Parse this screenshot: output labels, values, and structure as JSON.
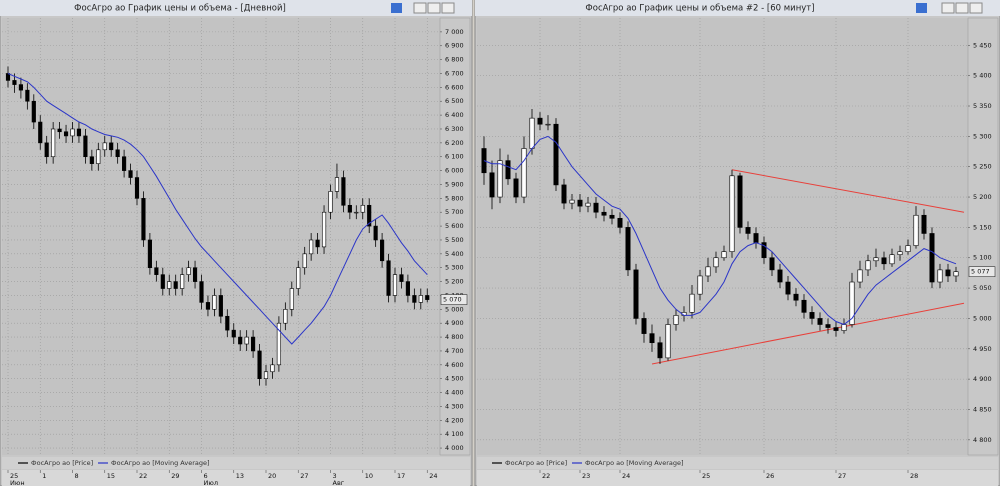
{
  "chart_data": [
    {
      "type": "candlestick",
      "title": "ФосАгро ао График цены и объема - [Дневной]",
      "categories": [
        "25",
        null,
        null,
        null,
        null,
        "1",
        null,
        null,
        null,
        null,
        "8",
        null,
        null,
        null,
        null,
        "15",
        null,
        null,
        null,
        null,
        "22",
        null,
        null,
        null,
        null,
        "29",
        null,
        null,
        null,
        null,
        "6",
        null,
        null,
        null,
        null,
        "13",
        null,
        null,
        null,
        null,
        "20",
        null,
        null,
        null,
        null,
        "27",
        null,
        null,
        null,
        null,
        "3",
        null,
        null,
        null,
        null,
        "10",
        null,
        null,
        null,
        null,
        "17",
        null,
        null,
        null,
        null,
        "24"
      ],
      "months": [
        "Июн",
        null,
        null,
        null,
        null,
        null,
        null,
        null,
        null,
        null,
        null,
        null,
        null,
        null,
        null,
        null,
        null,
        null,
        null,
        null,
        null,
        null,
        null,
        null,
        null,
        null,
        null,
        null,
        null,
        null,
        "Июл",
        null,
        null,
        null,
        null,
        null,
        null,
        null,
        null,
        null,
        null,
        null,
        null,
        null,
        null,
        null,
        null,
        null,
        null,
        null,
        "Авг",
        null,
        null,
        null,
        null,
        null,
        null,
        null,
        null,
        null,
        null,
        null,
        null,
        null,
        null,
        null
      ],
      "series": [
        {
          "name": "ФосАгро ао [Price]",
          "color": "#000000",
          "open": [
            6700,
            6650,
            6620,
            6580,
            6500,
            6350,
            6200,
            6100,
            6300,
            6280,
            6250,
            6300,
            6250,
            6100,
            6050,
            6150,
            6200,
            6150,
            6100,
            6000,
            5950,
            5800,
            5500,
            5300,
            5250,
            5150,
            5200,
            5150,
            5250,
            5300,
            5200,
            5050,
            5000,
            5100,
            4950,
            4850,
            4800,
            4750,
            4800,
            4700,
            4500,
            4550,
            4600,
            4900,
            5000,
            5150,
            5300,
            5400,
            5500,
            5450,
            5700,
            5850,
            5950,
            5750,
            5700,
            5700,
            5750,
            5600,
            5500,
            5350,
            5100,
            5250,
            5200,
            5100,
            5050,
            5100
          ],
          "high": [
            6750,
            6700,
            6670,
            6630,
            6550,
            6400,
            6250,
            6350,
            6350,
            6330,
            6350,
            6350,
            6300,
            6150,
            6200,
            6250,
            6250,
            6200,
            6150,
            6050,
            6000,
            5850,
            5550,
            5350,
            5300,
            5250,
            5250,
            5300,
            5350,
            5350,
            5250,
            5100,
            5150,
            5150,
            5000,
            4900,
            4850,
            4850,
            4850,
            4750,
            4600,
            4650,
            4950,
            5050,
            5200,
            5350,
            5450,
            5550,
            5550,
            5750,
            5900,
            6050,
            6000,
            5800,
            5750,
            5800,
            5800,
            5650,
            5550,
            5400,
            5300,
            5300,
            5250,
            5150,
            5150,
            5150
          ],
          "low": [
            6600,
            6560,
            6520,
            6440,
            6300,
            6150,
            6050,
            6050,
            6230,
            6200,
            6200,
            6200,
            6050,
            6000,
            6000,
            6100,
            6100,
            6050,
            5950,
            5900,
            5750,
            5450,
            5250,
            5200,
            5100,
            5100,
            5100,
            5100,
            5200,
            5150,
            5000,
            4950,
            4950,
            4900,
            4800,
            4750,
            4700,
            4700,
            4650,
            4450,
            4450,
            4500,
            4550,
            4850,
            4950,
            5100,
            5250,
            5350,
            5400,
            5400,
            5650,
            5800,
            5700,
            5650,
            5650,
            5650,
            5550,
            5450,
            5300,
            5050,
            5050,
            5150,
            5050,
            5000,
            5000,
            5050
          ],
          "close": [
            6650,
            6620,
            6580,
            6500,
            6350,
            6200,
            6100,
            6300,
            6280,
            6250,
            6300,
            6250,
            6100,
            6050,
            6150,
            6200,
            6150,
            6100,
            6000,
            5950,
            5800,
            5500,
            5300,
            5250,
            5150,
            5200,
            5150,
            5250,
            5300,
            5200,
            5050,
            5000,
            5100,
            4950,
            4850,
            4800,
            4750,
            4800,
            4700,
            4500,
            4550,
            4600,
            4900,
            5000,
            5150,
            5300,
            5400,
            5500,
            5450,
            5700,
            5850,
            5950,
            5750,
            5700,
            5700,
            5750,
            5600,
            5500,
            5350,
            5100,
            5250,
            5200,
            5100,
            5050,
            5100,
            5070
          ]
        },
        {
          "name": "ФосАгро ао [Moving Average]",
          "color": "#2b35c8",
          "values": [
            6700,
            6680,
            6660,
            6640,
            6600,
            6550,
            6500,
            6470,
            6440,
            6410,
            6380,
            6350,
            6330,
            6300,
            6280,
            6260,
            6250,
            6240,
            6220,
            6190,
            6150,
            6100,
            6030,
            5960,
            5880,
            5800,
            5720,
            5650,
            5580,
            5510,
            5450,
            5400,
            5350,
            5300,
            5250,
            5200,
            5150,
            5100,
            5050,
            5000,
            4950,
            4900,
            4850,
            4800,
            4750,
            4800,
            4850,
            4900,
            4960,
            5020,
            5100,
            5200,
            5300,
            5400,
            5500,
            5580,
            5620,
            5650,
            5680,
            5620,
            5550,
            5480,
            5420,
            5350,
            5300,
            5250
          ]
        }
      ],
      "ylim": [
        3950,
        7100
      ],
      "yticks": [
        {
          "value": 7000,
          "label": "7 000"
        },
        {
          "value": 6900,
          "label": "6 900"
        },
        {
          "value": 6800,
          "label": "6 800"
        },
        {
          "value": 6700,
          "label": "6 700"
        },
        {
          "value": 6600,
          "label": "6 600"
        },
        {
          "value": 6500,
          "label": "6 500"
        },
        {
          "value": 6400,
          "label": "6 400"
        },
        {
          "value": 6300,
          "label": "6 300"
        },
        {
          "value": 6200,
          "label": "6 200"
        },
        {
          "value": 6100,
          "label": "6 100"
        },
        {
          "value": 6000,
          "label": "6 000"
        },
        {
          "value": 5900,
          "label": "5 900"
        },
        {
          "value": 5800,
          "label": "5 800"
        },
        {
          "value": 5700,
          "label": "5 700"
        },
        {
          "value": 5600,
          "label": "5 600"
        },
        {
          "value": 5500,
          "label": "5 500"
        },
        {
          "value": 5400,
          "label": "5 400"
        },
        {
          "value": 5300,
          "label": "5 300"
        },
        {
          "value": 5200,
          "label": "5 200"
        },
        {
          "value": 5100,
          "label": "5 100"
        },
        {
          "value": 5000,
          "label": "5 000"
        },
        {
          "value": 4900,
          "label": "4 900"
        },
        {
          "value": 4800,
          "label": "4 800"
        },
        {
          "value": 4700,
          "label": "4 700"
        },
        {
          "value": 4600,
          "label": "4 600"
        },
        {
          "value": 4500,
          "label": "4 500"
        },
        {
          "value": 4400,
          "label": "4 400"
        },
        {
          "value": 4300,
          "label": "4 300"
        },
        {
          "value": 4200,
          "label": "4 200"
        },
        {
          "value": 4100,
          "label": "4 100"
        },
        {
          "value": 4000,
          "label": "4 000"
        }
      ],
      "last_price": {
        "value": 5070,
        "label": "5 070"
      },
      "grid": true
    },
    {
      "type": "candlestick",
      "title": "ФосАгро ао График цены и объема #2 - [60 минут]",
      "categories": [
        null,
        null,
        null,
        null,
        null,
        null,
        null,
        "22",
        null,
        null,
        null,
        null,
        "23",
        null,
        null,
        null,
        null,
        "24",
        null,
        null,
        null,
        null,
        null,
        null,
        null,
        null,
        null,
        "25",
        null,
        null,
        null,
        null,
        null,
        null,
        null,
        "26",
        null,
        null,
        null,
        null,
        null,
        null,
        null,
        null,
        "27",
        null,
        null,
        null,
        null,
        null,
        null,
        null,
        null,
        "28",
        null,
        null,
        null,
        null,
        null,
        null
      ],
      "series": [
        {
          "name": "ФосАгро ао [Price]",
          "color": "#000000",
          "open": [
            5280,
            5240,
            5200,
            5260,
            5230,
            5200,
            5280,
            5330,
            5320,
            5320,
            5220,
            5190,
            5195,
            5185,
            5190,
            5175,
            5170,
            5165,
            5150,
            5080,
            5000,
            4975,
            4960,
            4935,
            4990,
            5005,
            5010,
            5040,
            5070,
            5085,
            5100,
            5110,
            5235,
            5150,
            5140,
            5125,
            5100,
            5080,
            5060,
            5040,
            5030,
            5010,
            5000,
            4990,
            4985,
            4980,
            4990,
            5060,
            5080,
            5095,
            5100,
            5090,
            5105,
            5110,
            5120,
            5170,
            5140,
            5060,
            5080,
            5070
          ],
          "high": [
            5300,
            5260,
            5280,
            5270,
            5240,
            5300,
            5345,
            5340,
            5335,
            5330,
            5230,
            5205,
            5205,
            5200,
            5200,
            5185,
            5180,
            5175,
            5160,
            5090,
            5010,
            4990,
            4970,
            5000,
            5015,
            5020,
            5055,
            5080,
            5100,
            5110,
            5120,
            5245,
            5240,
            5160,
            5150,
            5135,
            5110,
            5090,
            5070,
            5050,
            5040,
            5020,
            5010,
            5000,
            4995,
            5000,
            5075,
            5095,
            5105,
            5115,
            5110,
            5115,
            5120,
            5130,
            5185,
            5180,
            5150,
            5090,
            5090,
            5085
          ],
          "low": [
            5220,
            5180,
            5190,
            5220,
            5190,
            5190,
            5270,
            5310,
            5310,
            5210,
            5180,
            5180,
            5175,
            5175,
            5165,
            5160,
            5155,
            5140,
            5070,
            4990,
            4960,
            4945,
            4925,
            4930,
            4980,
            4995,
            5000,
            5030,
            5060,
            5075,
            5095,
            5100,
            5140,
            5130,
            5115,
            5090,
            5070,
            5050,
            5030,
            5020,
            5000,
            4990,
            4980,
            4975,
            4970,
            4975,
            4985,
            5050,
            5070,
            5085,
            5080,
            5085,
            5095,
            5105,
            5115,
            5130,
            5050,
            5050,
            5060,
            5060
          ],
          "close": [
            5240,
            5200,
            5260,
            5230,
            5200,
            5280,
            5330,
            5320,
            5320,
            5220,
            5190,
            5195,
            5185,
            5190,
            5175,
            5170,
            5165,
            5150,
            5080,
            5000,
            4975,
            4960,
            4935,
            4990,
            5005,
            5010,
            5040,
            5070,
            5085,
            5100,
            5110,
            5235,
            5150,
            5140,
            5125,
            5100,
            5080,
            5060,
            5040,
            5030,
            5010,
            5000,
            4990,
            4985,
            4980,
            4990,
            5060,
            5080,
            5095,
            5100,
            5090,
            5105,
            5110,
            5120,
            5170,
            5140,
            5060,
            5080,
            5070,
            5077
          ]
        },
        {
          "name": "ФосАгро ао [Moving Average]",
          "color": "#2b35c8",
          "values": [
            5260,
            5255,
            5255,
            5250,
            5245,
            5260,
            5280,
            5295,
            5300,
            5290,
            5270,
            5250,
            5235,
            5220,
            5205,
            5195,
            5185,
            5180,
            5165,
            5140,
            5110,
            5080,
            5050,
            5030,
            5015,
            5005,
            5005,
            5010,
            5025,
            5040,
            5060,
            5090,
            5110,
            5120,
            5125,
            5120,
            5110,
            5095,
            5080,
            5065,
            5050,
            5035,
            5020,
            5005,
            4995,
            4990,
            5000,
            5020,
            5040,
            5055,
            5065,
            5075,
            5085,
            5095,
            5105,
            5115,
            5110,
            5100,
            5095,
            5090
          ]
        }
      ],
      "ylim": [
        4775,
        5495
      ],
      "yticks": [
        {
          "value": 5450,
          "label": "5 450"
        },
        {
          "value": 5400,
          "label": "5 400"
        },
        {
          "value": 5350,
          "label": "5 350"
        },
        {
          "value": 5300,
          "label": "5 300"
        },
        {
          "value": 5250,
          "label": "5 250"
        },
        {
          "value": 5200,
          "label": "5 200"
        },
        {
          "value": 5150,
          "label": "5 150"
        },
        {
          "value": 5100,
          "label": "5 100"
        },
        {
          "value": 5050,
          "label": "5 050"
        },
        {
          "value": 5000,
          "label": "5 000"
        },
        {
          "value": 4950,
          "label": "4 950"
        },
        {
          "value": 4900,
          "label": "4 900"
        },
        {
          "value": 4850,
          "label": "4 850"
        },
        {
          "value": 4800,
          "label": "4 800"
        }
      ],
      "last_price": {
        "value": 5077,
        "label": "5 077"
      },
      "trendlines": [
        {
          "color": "#e8403a",
          "x": [
            31,
            60
          ],
          "y": [
            5245,
            5175
          ]
        },
        {
          "color": "#e8403a",
          "x": [
            21,
            60
          ],
          "y": [
            4925,
            5025
          ]
        }
      ],
      "grid": true
    }
  ]
}
